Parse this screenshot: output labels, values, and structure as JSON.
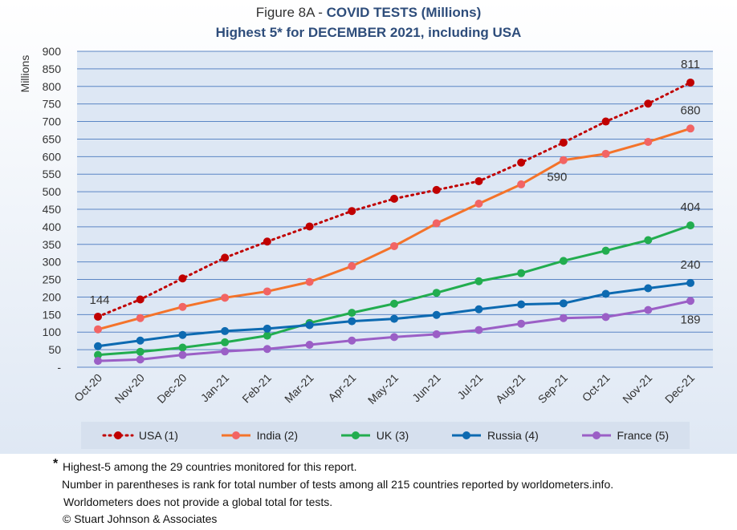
{
  "title": {
    "prefix": "Figure 8A - ",
    "bold": "COVID TESTS (Millions)",
    "line2": "Highest 5* for DECEMBER 2021, including USA"
  },
  "chart_data": {
    "type": "line",
    "categories": [
      "Oct-20",
      "Nov-20",
      "Dec-20",
      "Jan-21",
      "Feb-21",
      "Mar-21",
      "Apr-21",
      "May-21",
      "Jun-21",
      "Jul-21",
      "Aug-21",
      "Sep-21",
      "Oct-21",
      "Nov-21",
      "Dec-21"
    ],
    "ylabel": "Millions",
    "ylim": [
      0,
      900
    ],
    "yticks": [
      "-",
      "50",
      "100",
      "150",
      "200",
      "250",
      "300",
      "350",
      "400",
      "450",
      "500",
      "550",
      "600",
      "650",
      "700",
      "750",
      "800",
      "850",
      "900"
    ],
    "grid": true,
    "legend_position": "bottom",
    "series": [
      {
        "name": "USA (1)",
        "color": "#c00000",
        "style": "dotted",
        "values": [
          144,
          193,
          253,
          312,
          358,
          401,
          445,
          480,
          505,
          530,
          583,
          640,
          700,
          751,
          811
        ]
      },
      {
        "name": "India (2)",
        "color": "#f4732a",
        "style": "solid",
        "values": [
          108,
          140,
          172,
          198,
          216,
          243,
          288,
          345,
          410,
          466,
          521,
          590,
          608,
          642,
          680
        ]
      },
      {
        "name": "UK (3)",
        "color": "#22ad4f",
        "style": "solid",
        "values": [
          35,
          44,
          56,
          71,
          90,
          126,
          155,
          181,
          212,
          245,
          268,
          303,
          332,
          362,
          404
        ]
      },
      {
        "name": "Russia (4)",
        "color": "#0d6ab1",
        "style": "solid",
        "values": [
          60,
          76,
          92,
          103,
          110,
          120,
          131,
          138,
          149,
          165,
          179,
          182,
          209,
          225,
          240
        ]
      },
      {
        "name": "France (5)",
        "color": "#9b5fc6",
        "style": "solid",
        "values": [
          18,
          22,
          35,
          45,
          52,
          64,
          76,
          86,
          94,
          106,
          124,
          140,
          143,
          163,
          189
        ]
      }
    ],
    "data_labels": [
      {
        "series": 0,
        "index": 0,
        "text": "144"
      },
      {
        "series": 0,
        "index": 14,
        "text": "811"
      },
      {
        "series": 1,
        "index": 14,
        "text": "680"
      },
      {
        "series": 1,
        "index": 11,
        "text": "590"
      },
      {
        "series": 2,
        "index": 14,
        "text": "404"
      },
      {
        "series": 3,
        "index": 14,
        "text": "240"
      },
      {
        "series": 4,
        "index": 14,
        "text": "189"
      }
    ]
  },
  "notes": {
    "star": "*",
    "line1": "Highest-5 among the 29 countries monitored for this report.",
    "line2": "Number in parentheses is rank for total number of tests among all 215  countries reported by worldometers.info.",
    "line3": "Worldometers does not provide a global total for tests.",
    "line4": "© Stuart Johnson & Associates"
  }
}
